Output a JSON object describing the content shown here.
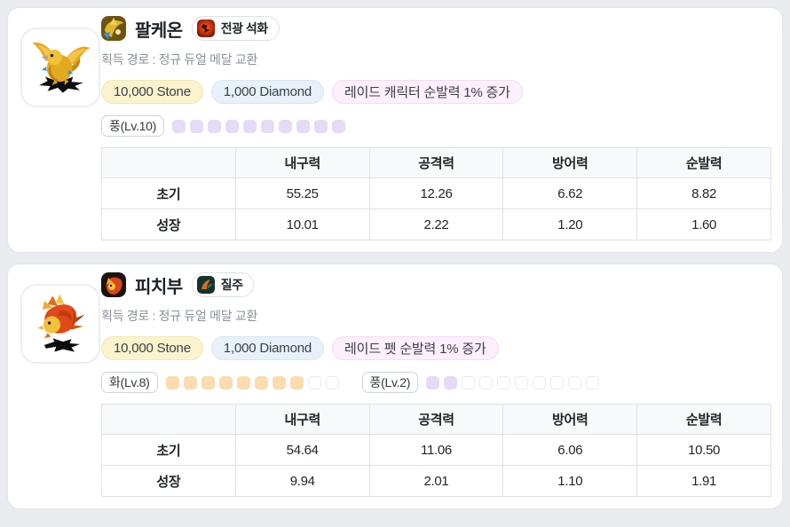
{
  "page": {
    "background": "#e9ebee"
  },
  "colors": {
    "stone_pill_bg": "#fbf3cd",
    "diamond_pill_bg": "#e8f1fa",
    "buff_pill_bg": "#fdeffb",
    "wind_square": "#e7daf6",
    "fire_square": "#fbdcae",
    "table_header_bg": "#f8f9fa",
    "table_border": "#dee2e6"
  },
  "icons": {
    "card1_character_icon": "gold-dragon-portrait-icon",
    "card1_skill_icon": "red-flame-skill-icon",
    "card2_character_icon": "orange-creature-portrait-icon",
    "card2_skill_icon": "dark-green-dash-skill-icon"
  },
  "cards": [
    {
      "name": "팔케온",
      "skill_badge": "전광 석화",
      "acquisition": "획득 경로 : 정규 듀얼 메달 교환",
      "price_stone": "10,000 Stone",
      "price_diamond": "1,000 Diamond",
      "buff": "레이드 캐릭터 순발력 1% 증가",
      "elements": [
        {
          "label": "풍(Lv.10)",
          "filled": 10,
          "total": 10,
          "color": "#e7daf6"
        }
      ],
      "table": {
        "headers": [
          "",
          "내구력",
          "공격력",
          "방어력",
          "순발력"
        ],
        "rows": [
          {
            "label": "초기",
            "values": [
              "55.25",
              "12.26",
              "6.62",
              "8.82"
            ]
          },
          {
            "label": "성장",
            "values": [
              "10.01",
              "2.22",
              "1.20",
              "1.60"
            ]
          }
        ]
      }
    },
    {
      "name": "피치부",
      "skill_badge": "질주",
      "acquisition": "획득 경로 : 정규 듀얼 메달 교환",
      "price_stone": "10,000 Stone",
      "price_diamond": "1,000 Diamond",
      "buff": "레이드 펫 순발력 1% 증가",
      "elements": [
        {
          "label": "화(Lv.8)",
          "filled": 8,
          "total": 10,
          "color": "#fbdcae"
        },
        {
          "label": "풍(Lv.2)",
          "filled": 2,
          "total": 10,
          "color": "#e7daf6"
        }
      ],
      "table": {
        "headers": [
          "",
          "내구력",
          "공격력",
          "방어력",
          "순발력"
        ],
        "rows": [
          {
            "label": "초기",
            "values": [
              "54.64",
              "11.06",
              "6.06",
              "10.50"
            ]
          },
          {
            "label": "성장",
            "values": [
              "9.94",
              "2.01",
              "1.10",
              "1.91"
            ]
          }
        ]
      }
    }
  ]
}
